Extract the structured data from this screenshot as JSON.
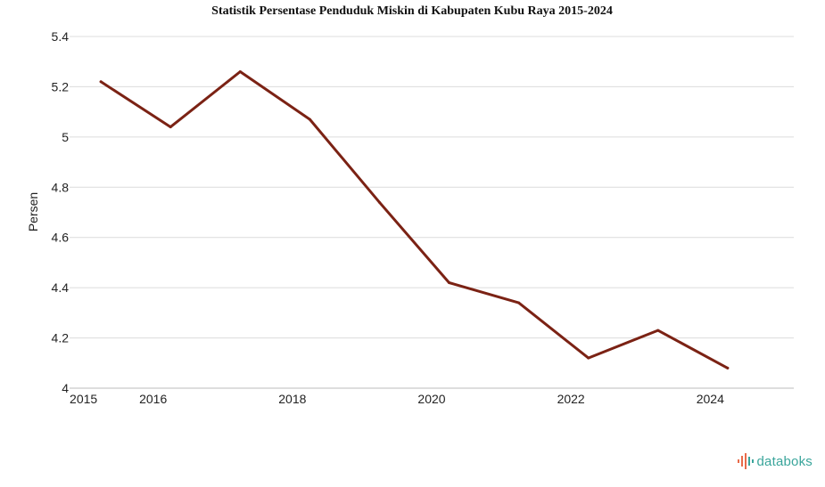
{
  "chart_data": {
    "type": "line",
    "title": "Statistik Persentase Penduduk Miskin di Kabupaten Kubu Raya 2015-2024",
    "xlabel": "",
    "ylabel": "Persen",
    "x": [
      2015.25,
      2016.25,
      2017.25,
      2018.25,
      2019.25,
      2020.25,
      2021.25,
      2022.25,
      2023.25,
      2024.25
    ],
    "xlim": [
      2014.8,
      2025.2
    ],
    "xticks": [
      2015,
      2016,
      2018,
      2020,
      2022,
      2024
    ],
    "xtick_labels": [
      "2015",
      "2016",
      "2018",
      "2020",
      "2022",
      "2024"
    ],
    "ylim": [
      4,
      5.4
    ],
    "yticks": [
      4,
      4.2,
      4.4,
      4.6,
      4.8,
      5,
      5.2,
      5.4
    ],
    "ytick_labels": [
      "4",
      "4.2",
      "4.4",
      "4.6",
      "4.8",
      "5",
      "5.2",
      "5.4"
    ],
    "grid": true,
    "series": [
      {
        "name": "Persentase Penduduk Miskin",
        "color": "#7b2214",
        "values": [
          5.22,
          5.04,
          5.26,
          5.07,
          4.74,
          4.42,
          4.34,
          4.12,
          4.23,
          4.08
        ]
      }
    ]
  },
  "brand": {
    "name": "databoks",
    "icon": "databoks-logo-icon",
    "accent": "#3aa59b"
  }
}
